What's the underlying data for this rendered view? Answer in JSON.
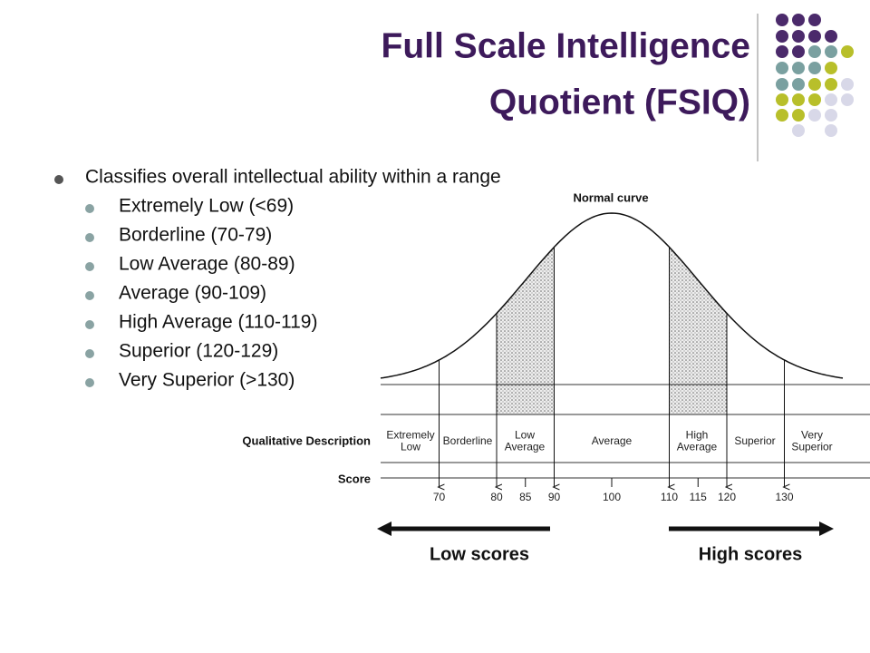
{
  "title": [
    "Full Scale Intelligence",
    "Quotient (FSIQ)"
  ],
  "bullets": {
    "text": "Classifies overall intellectual ability within a range",
    "items": [
      "Extremely Low (<69)",
      "Borderline (70-79)",
      "Low Average (80-89)",
      "Average (90-109)",
      "High Average (110-119)",
      "Superior (120-129)",
      "Very Superior (>130)"
    ]
  },
  "figure": {
    "curve_label": "Normal curve",
    "row_labels": {
      "description": "Qualitative Description",
      "score": "Score"
    },
    "categories": [
      [
        "Extremely",
        "Low"
      ],
      [
        "Borderline"
      ],
      [
        "Low",
        "Average"
      ],
      [
        "Average"
      ],
      [
        "High",
        "Average"
      ],
      [
        "Superior"
      ],
      [
        "Very",
        "Superior"
      ]
    ],
    "scores": [
      70,
      80,
      85,
      90,
      100,
      110,
      115,
      120,
      130
    ],
    "arrows": {
      "low": "Low scores",
      "high": "High scores"
    }
  }
}
